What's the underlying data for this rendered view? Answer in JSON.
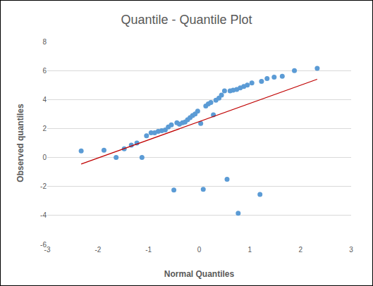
{
  "chart_data": {
    "type": "scatter",
    "title": "Quantile - Quantile Plot",
    "x_label": "Normal Quantiles",
    "y_label": "Observed quantiles",
    "xlim": [
      -3,
      3
    ],
    "xticks": [
      -3,
      -2,
      -1,
      0,
      1,
      2,
      3
    ],
    "ylim": [
      -6,
      8
    ],
    "yticks": [
      -6,
      -4,
      -2,
      0,
      2,
      4,
      6,
      8
    ],
    "grid": "y",
    "series": [
      {
        "type": "scatter",
        "color": "#5b9bd5",
        "marker": "circle",
        "x": [
          -2.33,
          -1.88,
          -1.64,
          -1.48,
          -1.34,
          -1.23,
          -1.13,
          -1.04,
          -0.95,
          -0.88,
          -0.81,
          -0.74,
          -0.67,
          -0.61,
          -0.55,
          -0.5,
          -0.44,
          -0.39,
          -0.33,
          -0.28,
          -0.23,
          -0.18,
          -0.13,
          -0.08,
          -0.03,
          0.03,
          0.08,
          0.13,
          0.18,
          0.23,
          0.28,
          0.33,
          0.39,
          0.44,
          0.5,
          0.55,
          0.61,
          0.67,
          0.74,
          0.77,
          0.81,
          0.88,
          0.95,
          1.04,
          1.2,
          1.23,
          1.34,
          1.48,
          1.64,
          1.88,
          2.33
        ],
        "values": [
          0.45,
          0.5,
          0.0,
          0.6,
          0.85,
          1.0,
          0.0,
          1.5,
          1.7,
          1.7,
          1.8,
          1.85,
          1.9,
          2.1,
          2.25,
          -2.25,
          2.4,
          2.3,
          2.4,
          2.45,
          2.6,
          2.75,
          2.9,
          3.0,
          3.2,
          2.35,
          -2.2,
          3.55,
          3.7,
          3.8,
          2.95,
          3.95,
          4.1,
          4.3,
          4.6,
          -1.5,
          4.6,
          4.65,
          4.7,
          -3.85,
          4.8,
          4.9,
          5.0,
          5.15,
          -2.55,
          5.25,
          5.45,
          5.55,
          5.6,
          6.0,
          6.15
        ]
      },
      {
        "type": "line",
        "color": "#c00000",
        "line_style": "solid",
        "x": [
          -2.33,
          2.33
        ],
        "values": [
          -0.45,
          5.4
        ]
      }
    ]
  }
}
